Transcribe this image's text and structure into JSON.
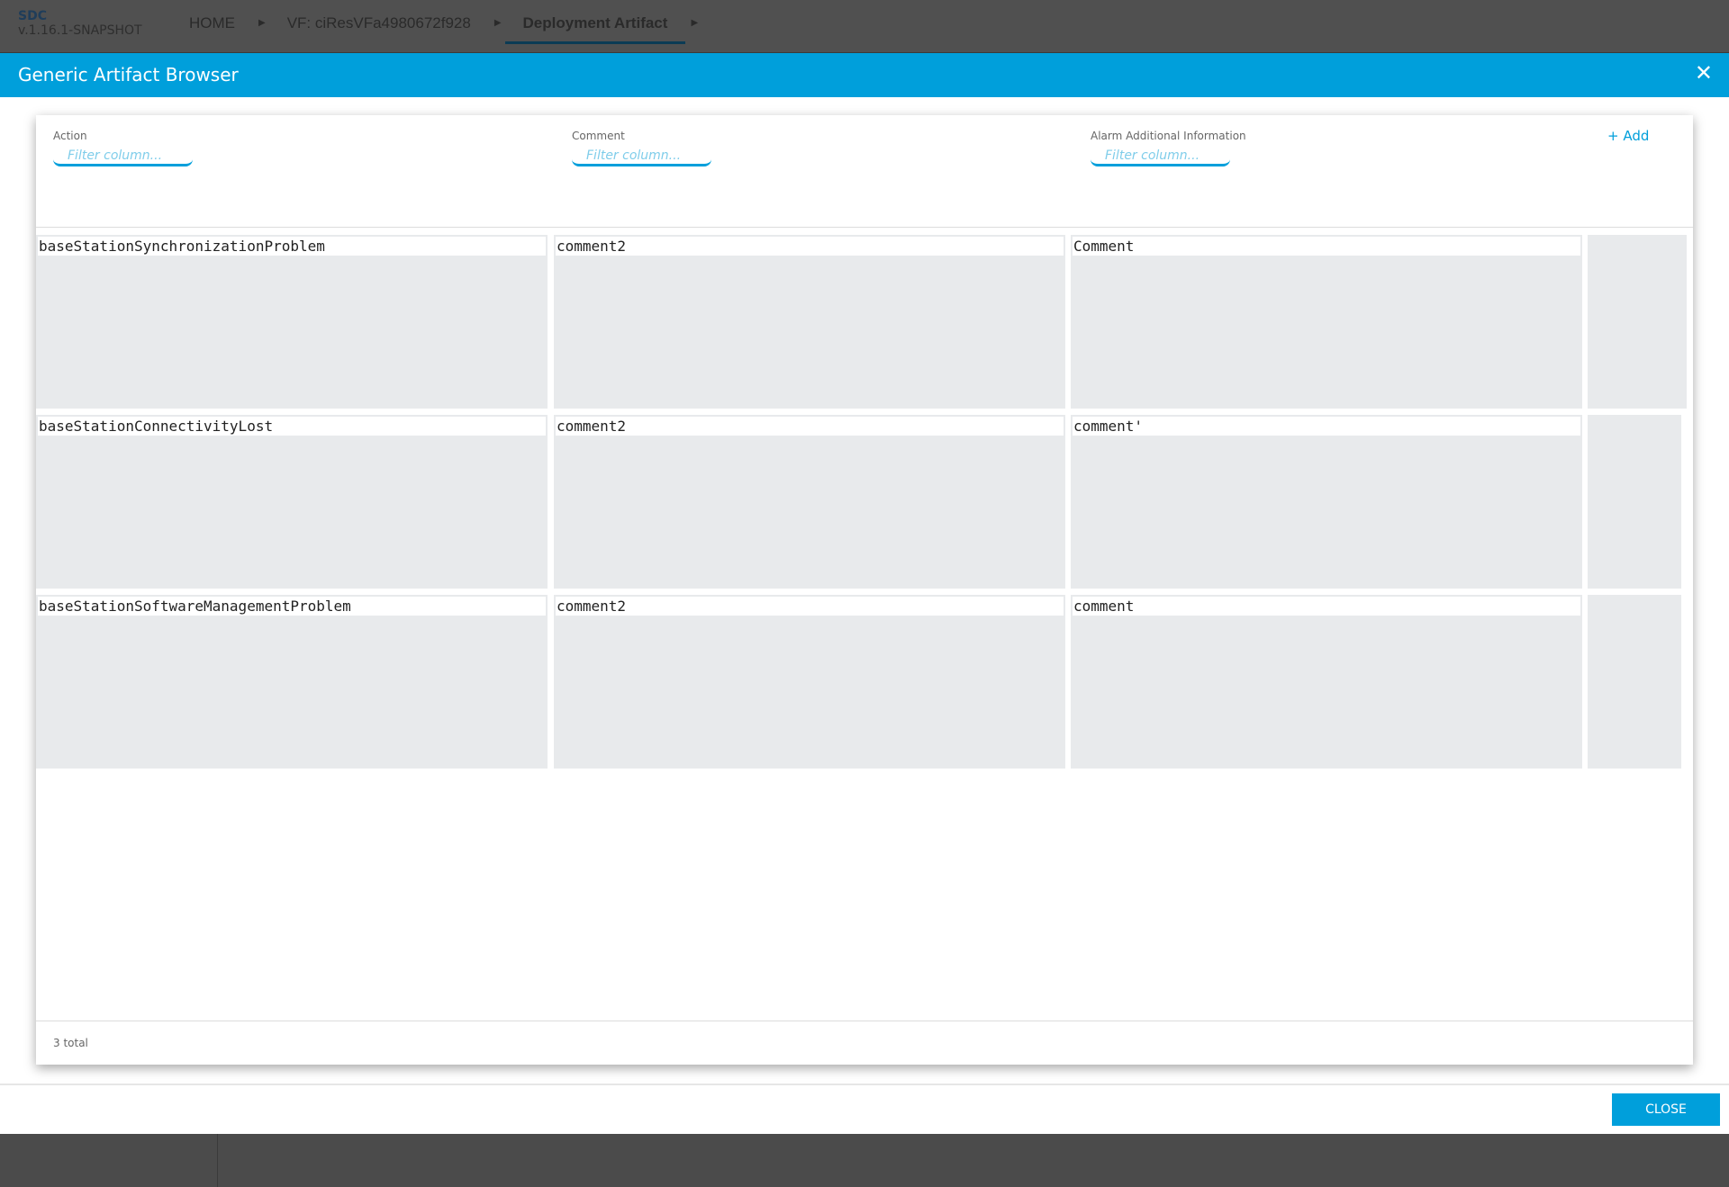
{
  "topbar": {
    "brand": "SDC",
    "version": "v.1.16.1-SNAPSHOT",
    "breadcrumbs": [
      {
        "label": "HOME"
      },
      {
        "label": "VF: ciResVFa4980672f928"
      },
      {
        "label": "Deployment Artifact",
        "active": true
      }
    ]
  },
  "modal": {
    "title": "Generic Artifact Browser",
    "close_icon": "close-icon",
    "columns": [
      {
        "label": "Action",
        "filter_placeholder": "Filter column..."
      },
      {
        "label": "Comment",
        "filter_placeholder": "Filter column..."
      },
      {
        "label": "Alarm Additional Information",
        "filter_placeholder": "Filter column..."
      }
    ],
    "add_label": "+ Add",
    "rows": [
      [
        "baseStationSynchronizationProblem",
        "comment2",
        "Comment"
      ],
      [
        "baseStationConnectivityLost",
        "comment2",
        "comment'"
      ],
      [
        "baseStationSoftwareManagementProblem",
        "comment2",
        "comment"
      ]
    ],
    "total": "3 total",
    "close_button": "CLOSE"
  },
  "colors": {
    "accent": "#009fdb",
    "cell_bg": "#e8eaec",
    "topbar": "#505050"
  }
}
